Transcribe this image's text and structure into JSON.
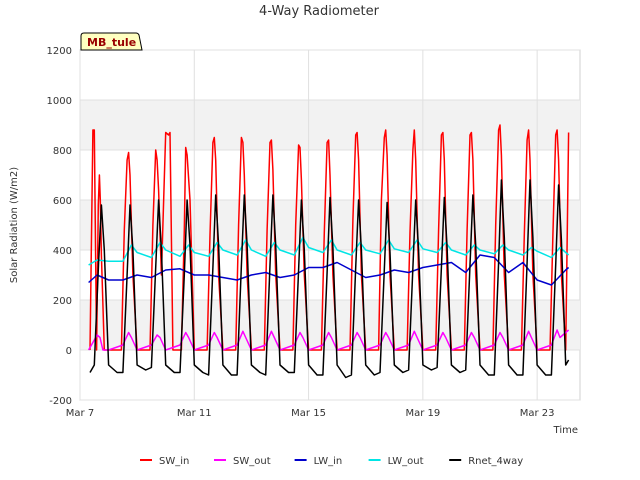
{
  "chart_data": {
    "type": "line",
    "title": "4-Way Radiometer",
    "site_label": "MB_tule",
    "xlabel": "Time",
    "ylabel": "Solar Radiation (W/m2)",
    "xlim": [
      0,
      17.5
    ],
    "ylim": [
      -200,
      1200
    ],
    "yticks": [
      -200,
      0,
      200,
      400,
      600,
      800,
      1000,
      1200
    ],
    "xticks": [
      {
        "value": 0,
        "label": "Mar 7"
      },
      {
        "value": 4,
        "label": "Mar 11"
      },
      {
        "value": 8,
        "label": "Mar 15"
      },
      {
        "value": 12,
        "label": "Mar 19"
      },
      {
        "value": 16,
        "label": "Mar 23"
      }
    ],
    "grid": true,
    "legend_position": "bottom",
    "series_style": {
      "SW_in": "#ff0000",
      "SW_out": "#ff00ff",
      "LW_in": "#0000cc",
      "LW_out": "#00e5e5",
      "Rnet_4way": "#000000"
    },
    "series": [
      {
        "name": "SW_in",
        "x": [
          0.35,
          0.45,
          0.5,
          0.58,
          0.64,
          0.68,
          0.71,
          0.75,
          0.85,
          1.0,
          1.15,
          1.25,
          1.35,
          1.45,
          1.55,
          1.65,
          1.7,
          1.75,
          1.85,
          2.0,
          2.15,
          2.25,
          2.35,
          2.45,
          2.55,
          2.65,
          2.7,
          2.75,
          2.85,
          3.0,
          3.1,
          3.15,
          3.25,
          3.35,
          3.45,
          3.55,
          3.65,
          3.7,
          3.75,
          3.85,
          4.0,
          4.15,
          4.25,
          4.35,
          4.45,
          4.55,
          4.65,
          4.7,
          4.75,
          4.85,
          5.0,
          5.15,
          5.25,
          5.35,
          5.45,
          5.55,
          5.65,
          5.7,
          5.75,
          5.85,
          6.0,
          6.15,
          6.25,
          6.35,
          6.45,
          6.55,
          6.65,
          6.7,
          6.75,
          6.85,
          7.0,
          7.15,
          7.25,
          7.35,
          7.45,
          7.55,
          7.65,
          7.7,
          7.75,
          7.85,
          8.0,
          8.15,
          8.25,
          8.35,
          8.45,
          8.55,
          8.65,
          8.7,
          8.75,
          8.85,
          9.0,
          9.15,
          9.25,
          9.35,
          9.45,
          9.55,
          9.65,
          9.7,
          9.75,
          9.85,
          10.0,
          10.15,
          10.25,
          10.35,
          10.45,
          10.55,
          10.65,
          10.7,
          10.75,
          10.85,
          11.0,
          11.15,
          11.25,
          11.35,
          11.45,
          11.55,
          11.65,
          11.7,
          11.75,
          11.85,
          12.0,
          12.15,
          12.25,
          12.35,
          12.45,
          12.55,
          12.65,
          12.7,
          12.75,
          12.85,
          13.0,
          13.15,
          13.25,
          13.35,
          13.45,
          13.55,
          13.65,
          13.7,
          13.75,
          13.85,
          14.0,
          14.15,
          14.25,
          14.35,
          14.45,
          14.55,
          14.65,
          14.7,
          14.75,
          14.85,
          15.0,
          15.15,
          15.25,
          15.35,
          15.45,
          15.55,
          15.65,
          15.7,
          15.75,
          15.85,
          16.0,
          16.15,
          16.25,
          16.35,
          16.45,
          16.55,
          16.65,
          16.7,
          16.75,
          16.85,
          17.0,
          17.1
        ],
        "y": [
          0,
          880,
          880,
          0,
          580,
          700,
          600,
          380,
          0,
          0,
          0,
          0,
          0,
          0,
          480,
          760,
          790,
          700,
          300,
          0,
          0,
          0,
          0,
          0,
          500,
          800,
          760,
          640,
          300,
          870,
          860,
          870,
          0,
          0,
          0,
          0,
          480,
          810,
          780,
          600,
          0,
          0,
          0,
          0,
          0,
          460,
          830,
          850,
          760,
          300,
          0,
          0,
          0,
          0,
          0,
          500,
          850,
          830,
          700,
          300,
          0,
          0,
          0,
          0,
          0,
          480,
          830,
          840,
          720,
          300,
          0,
          0,
          0,
          0,
          0,
          500,
          820,
          810,
          680,
          300,
          0,
          0,
          0,
          0,
          0,
          470,
          830,
          840,
          700,
          300,
          0,
          0,
          0,
          0,
          0,
          520,
          860,
          870,
          760,
          300,
          0,
          0,
          0,
          0,
          0,
          600,
          850,
          880,
          780,
          300,
          0,
          0,
          0,
          0,
          0,
          470,
          800,
          880,
          760,
          300,
          0,
          0,
          0,
          0,
          0,
          480,
          860,
          870,
          760,
          300,
          0,
          0,
          0,
          0,
          0,
          480,
          860,
          870,
          760,
          300,
          0,
          0,
          0,
          0,
          0,
          500,
          880,
          900,
          780,
          300,
          0,
          0,
          0,
          0,
          0,
          460,
          840,
          880,
          760,
          300,
          0,
          0,
          0,
          0,
          0,
          460,
          860,
          880,
          760,
          300,
          0,
          870
        ]
      },
      {
        "name": "SW_out",
        "x": [
          0.3,
          0.5,
          0.6,
          0.7,
          0.8,
          1.0,
          1.5,
          1.7,
          1.8,
          2.0,
          2.5,
          2.7,
          2.8,
          3.0,
          3.5,
          3.7,
          3.8,
          4.0,
          4.5,
          4.7,
          4.8,
          5.0,
          5.5,
          5.7,
          5.8,
          6.0,
          6.5,
          6.7,
          6.8,
          7.0,
          7.5,
          7.7,
          7.8,
          8.0,
          8.5,
          8.7,
          8.8,
          9.0,
          9.5,
          9.7,
          9.8,
          10.0,
          10.5,
          10.7,
          10.8,
          11.0,
          11.5,
          11.7,
          11.8,
          12.0,
          12.5,
          12.7,
          12.8,
          13.0,
          13.5,
          13.7,
          13.8,
          14.0,
          14.5,
          14.7,
          14.8,
          15.0,
          15.5,
          15.7,
          15.8,
          16.0,
          16.5,
          16.7,
          16.8,
          17.1
        ],
        "y": [
          0,
          40,
          60,
          50,
          0,
          0,
          20,
          70,
          50,
          0,
          20,
          60,
          50,
          0,
          20,
          70,
          50,
          0,
          20,
          70,
          50,
          0,
          20,
          75,
          50,
          0,
          20,
          75,
          50,
          0,
          20,
          70,
          50,
          0,
          20,
          70,
          50,
          0,
          20,
          70,
          50,
          0,
          20,
          70,
          50,
          0,
          20,
          75,
          50,
          0,
          20,
          70,
          50,
          0,
          20,
          70,
          50,
          0,
          20,
          70,
          50,
          0,
          20,
          75,
          50,
          0,
          20,
          80,
          50,
          80
        ]
      },
      {
        "name": "LW_in",
        "x": [
          0.3,
          0.6,
          1.0,
          1.5,
          2.0,
          2.5,
          3.0,
          3.5,
          4.0,
          4.5,
          5.0,
          5.5,
          6.0,
          6.5,
          7.0,
          7.5,
          8.0,
          8.5,
          9.0,
          9.5,
          10.0,
          10.5,
          11.0,
          11.5,
          12.0,
          12.5,
          13.0,
          13.5,
          14.0,
          14.5,
          15.0,
          15.5,
          16.0,
          16.5,
          17.0,
          17.1
        ],
        "y": [
          270,
          300,
          280,
          280,
          300,
          290,
          320,
          325,
          300,
          300,
          290,
          280,
          300,
          310,
          290,
          300,
          330,
          330,
          350,
          320,
          290,
          300,
          320,
          310,
          330,
          340,
          350,
          310,
          380,
          370,
          310,
          350,
          280,
          260,
          320,
          330
        ]
      },
      {
        "name": "LW_out",
        "x": [
          0.3,
          0.6,
          1.0,
          1.5,
          1.8,
          2.0,
          2.5,
          2.8,
          3.0,
          3.5,
          3.8,
          4.0,
          4.5,
          4.8,
          5.0,
          5.5,
          5.8,
          6.0,
          6.5,
          6.8,
          7.0,
          7.5,
          7.8,
          8.0,
          8.5,
          8.8,
          9.0,
          9.5,
          9.8,
          10.0,
          10.5,
          10.8,
          11.0,
          11.5,
          11.8,
          12.0,
          12.5,
          12.8,
          13.0,
          13.5,
          13.8,
          14.0,
          14.5,
          14.8,
          15.0,
          15.5,
          15.8,
          16.0,
          16.5,
          16.8,
          17.1
        ],
        "y": [
          340,
          360,
          355,
          355,
          420,
          390,
          370,
          430,
          400,
          375,
          420,
          390,
          375,
          430,
          400,
          380,
          440,
          400,
          375,
          430,
          400,
          380,
          450,
          410,
          390,
          440,
          400,
          380,
          430,
          400,
          385,
          440,
          405,
          390,
          440,
          405,
          390,
          430,
          400,
          380,
          420,
          400,
          385,
          420,
          400,
          380,
          410,
          395,
          370,
          410,
          380
        ]
      },
      {
        "name": "Rnet_4way",
        "x": [
          0.35,
          0.5,
          0.65,
          0.75,
          0.85,
          1.0,
          1.3,
          1.5,
          1.65,
          1.75,
          1.85,
          2.0,
          2.3,
          2.5,
          2.65,
          2.75,
          2.85,
          3.0,
          3.3,
          3.5,
          3.65,
          3.75,
          3.85,
          4.0,
          4.3,
          4.5,
          4.65,
          4.75,
          4.85,
          5.0,
          5.3,
          5.5,
          5.65,
          5.75,
          5.85,
          6.0,
          6.3,
          6.5,
          6.65,
          6.75,
          6.85,
          7.0,
          7.3,
          7.5,
          7.65,
          7.75,
          7.85,
          8.0,
          8.3,
          8.5,
          8.65,
          8.75,
          8.85,
          9.0,
          9.3,
          9.5,
          9.65,
          9.75,
          9.85,
          10.0,
          10.3,
          10.5,
          10.65,
          10.75,
          10.85,
          11.0,
          11.3,
          11.5,
          11.65,
          11.75,
          11.85,
          12.0,
          12.3,
          12.5,
          12.65,
          12.75,
          12.85,
          13.0,
          13.3,
          13.5,
          13.65,
          13.75,
          13.85,
          14.0,
          14.3,
          14.5,
          14.65,
          14.75,
          14.85,
          15.0,
          15.3,
          15.5,
          15.65,
          15.75,
          15.85,
          16.0,
          16.3,
          16.5,
          16.65,
          16.75,
          16.85,
          17.0,
          17.1
        ],
        "y": [
          -90,
          -60,
          350,
          580,
          400,
          -60,
          -90,
          -90,
          300,
          580,
          400,
          -60,
          -80,
          -70,
          330,
          600,
          400,
          -60,
          -90,
          -90,
          300,
          600,
          420,
          -60,
          -90,
          -100,
          330,
          620,
          420,
          -60,
          -100,
          -100,
          340,
          620,
          420,
          -60,
          -90,
          -100,
          340,
          620,
          420,
          -60,
          -90,
          -90,
          320,
          600,
          400,
          -60,
          -100,
          -100,
          310,
          610,
          410,
          -60,
          -110,
          -100,
          330,
          600,
          400,
          -60,
          -100,
          -90,
          320,
          590,
          390,
          -60,
          -90,
          -80,
          330,
          600,
          400,
          -60,
          -80,
          -70,
          330,
          610,
          410,
          -60,
          -90,
          -80,
          340,
          620,
          420,
          -60,
          -100,
          -100,
          350,
          680,
          450,
          -60,
          -100,
          -100,
          350,
          680,
          450,
          -60,
          -100,
          -100,
          340,
          660,
          440,
          -60,
          -40
        ]
      }
    ]
  }
}
